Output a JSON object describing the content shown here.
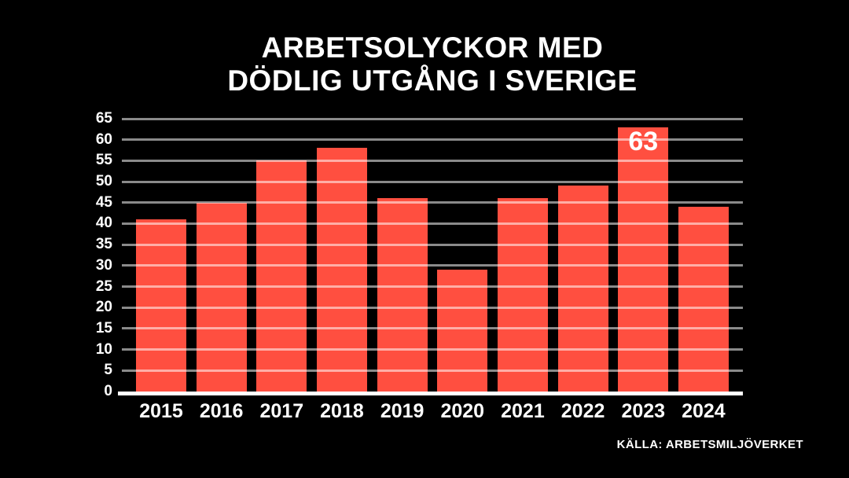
{
  "title": {
    "line1": "ARBETSOLYCKOR MED",
    "line2": "DÖDLIG UTGÅNG I SVERIGE"
  },
  "source": "KÄLLA: ARBETSMILJÖVERKET",
  "colors": {
    "background": "#000000",
    "bar": "#FF4F40",
    "gridline": "rgba(255,255,255,0.54)",
    "axis_line": "#FFFFFF",
    "text": "#FFFFFF"
  },
  "chart_data": {
    "type": "bar",
    "title": "ARBETSOLYCKOR MED DÖDLIG UTGÅNG I SVERIGE",
    "categories": [
      "2015",
      "2016",
      "2017",
      "2018",
      "2019",
      "2020",
      "2021",
      "2022",
      "2023",
      "2024"
    ],
    "values": [
      41,
      45,
      55,
      58,
      46,
      29,
      46,
      49,
      63,
      44
    ],
    "xlabel": "",
    "ylabel": "",
    "ylim": [
      0,
      65
    ],
    "yticks": [
      0,
      5,
      10,
      15,
      20,
      25,
      30,
      35,
      40,
      45,
      50,
      55,
      60,
      65
    ],
    "grid": true,
    "gridlines_over_bars": true,
    "legend": "none",
    "annotations": [
      {
        "category": "2023",
        "text": "63",
        "position": "inside-top"
      }
    ]
  }
}
